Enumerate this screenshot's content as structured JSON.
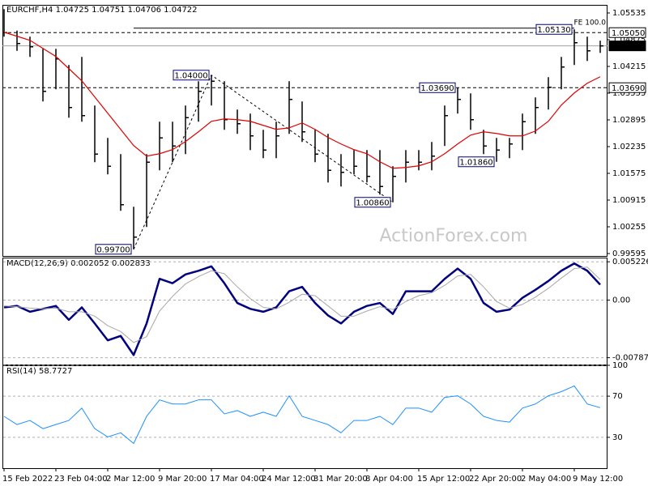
{
  "chart_data": [
    {
      "type": "hlc",
      "title": "EURCHF,H4 1.04725 1.04751 1.04706 1.04722",
      "watermark": "ActionForex.com",
      "categories": [
        "15 Feb 2022",
        null,
        null,
        null,
        "23 Feb 04:00",
        null,
        null,
        null,
        "2 Mar 12:00",
        null,
        null,
        null,
        "9 Mar 20:00",
        null,
        null,
        null,
        "17 Mar 04:00",
        null,
        null,
        null,
        "24 Mar 12:00",
        null,
        null,
        null,
        "31 Mar 20:00",
        null,
        null,
        null,
        "8 Apr 04:00",
        null,
        null,
        null,
        "15 Apr 12:00",
        null,
        null,
        null,
        "22 Apr 20:00",
        null,
        null,
        null,
        "2 May 04:00",
        null,
        null,
        null,
        "9 May 12:00",
        null,
        null
      ],
      "high": [
        1.0563,
        1.051,
        1.0495,
        1.0465,
        1.0465,
        1.0425,
        1.0445,
        1.0325,
        1.0245,
        1.0205,
        1.0075,
        1.0205,
        1.0285,
        1.0285,
        1.0325,
        1.0385,
        1.04,
        1.0385,
        1.0315,
        1.0305,
        1.0265,
        1.0285,
        1.0385,
        1.0335,
        1.0265,
        1.0255,
        1.0205,
        1.0215,
        1.0215,
        1.0215,
        1.0175,
        1.0215,
        1.0215,
        1.0235,
        1.0325,
        1.0369,
        1.0355,
        1.0265,
        1.0245,
        1.0245,
        1.0305,
        1.0345,
        1.0395,
        1.0445,
        1.0513,
        1.0495,
        1.0485
      ],
      "low": [
        1.0495,
        1.046,
        1.0445,
        1.0335,
        1.0365,
        1.0295,
        1.0285,
        1.0185,
        1.0155,
        1.0065,
        0.997,
        1.0025,
        1.0165,
        1.0185,
        1.0205,
        1.0285,
        1.0325,
        1.0265,
        1.0255,
        1.0215,
        1.0195,
        1.0195,
        1.0255,
        1.0235,
        1.0185,
        1.0135,
        1.0125,
        1.0155,
        1.0135,
        1.0105,
        1.0086,
        1.0135,
        1.0165,
        1.0165,
        1.0225,
        1.0305,
        1.0265,
        1.0205,
        1.0186,
        1.0195,
        1.0215,
        1.0255,
        1.0315,
        1.0365,
        1.0425,
        1.0435,
        1.0455
      ],
      "close": [
        1.0505,
        1.0478,
        1.047,
        1.036,
        1.044,
        1.032,
        1.03,
        1.0205,
        1.0175,
        1.008,
        1.0,
        1.0185,
        1.0245,
        1.0225,
        1.0295,
        1.036,
        1.0385,
        1.029,
        1.028,
        1.025,
        1.0215,
        1.025,
        1.034,
        1.026,
        1.0205,
        1.0165,
        1.016,
        1.0175,
        1.015,
        1.0125,
        1.015,
        1.0185,
        1.0185,
        1.02,
        1.03,
        1.034,
        1.029,
        1.0225,
        1.0215,
        1.023,
        1.0285,
        1.032,
        1.037,
        1.042,
        1.048,
        1.046,
        1.04722
      ],
      "bar_color": "#000000",
      "ma_values": [
        1.0506,
        1.0496,
        1.0486,
        1.0466,
        1.0446,
        1.0416,
        1.0386,
        1.0346,
        1.0306,
        1.0266,
        1.0226,
        1.02,
        1.0206,
        1.0216,
        1.0236,
        1.026,
        1.0286,
        1.0292,
        1.029,
        1.0286,
        1.0276,
        1.0266,
        1.027,
        1.0282,
        1.0266,
        1.0246,
        1.023,
        1.0216,
        1.0206,
        1.0186,
        1.017,
        1.0172,
        1.0176,
        1.0186,
        1.0206,
        1.023,
        1.0252,
        1.026,
        1.0256,
        1.025,
        1.025,
        1.0262,
        1.0286,
        1.0326,
        1.0356,
        1.038,
        1.0396
      ],
      "ma_color": "#e00000",
      "ylim": [
        0.99535,
        1.05735
      ],
      "yticks": [
        1.05535,
        1.04875,
        1.04215,
        1.03555,
        1.02895,
        1.02235,
        1.01575,
        1.00915,
        1.00255,
        0.99595
      ],
      "hlines": [
        {
          "value": 1.0505,
          "label": "1.05050",
          "style": "dashed"
        },
        {
          "value": 1.04722,
          "label": "1.04722",
          "style": "current"
        },
        {
          "value": 1.0369,
          "label": "1.03690",
          "style": "dashed"
        }
      ],
      "annotations": [
        {
          "value": 1.0513,
          "label": "1.05130",
          "x": 44
        },
        {
          "value": 1.04,
          "label": "1.04000",
          "x": 16
        },
        {
          "value": 0.997,
          "label": "0.99700",
          "x": 10
        },
        {
          "value": 1.0369,
          "label": "1.03690",
          "x": 35
        },
        {
          "value": 1.0086,
          "label": "1.00860",
          "x": 30
        },
        {
          "value": 1.0186,
          "label": "1.01860",
          "x": 38
        }
      ],
      "fe_level": {
        "value": 1.0516,
        "label": "FE 100.0",
        "x": [
          10,
          44
        ]
      },
      "trendline": {
        "x": [
          10,
          16,
          30
        ],
        "values": [
          0.997,
          1.04,
          1.0086
        ]
      }
    },
    {
      "type": "line",
      "title": "MACD(12,26,9) 0.002052 0.002833",
      "ylim": [
        -0.0088,
        0.0058
      ],
      "yticks": [
        0.005226,
        {
          "value": 0,
          "label": "0.00"
        },
        -0.007873
      ],
      "grid": true,
      "series": [
        {
          "color": "#00007f",
          "width": 2.5,
          "values": [
            -0.001,
            -0.0008,
            -0.0016,
            -0.0012,
            -0.0008,
            -0.0027,
            -0.001,
            -0.0032,
            -0.0055,
            -0.0049,
            -0.0075,
            -0.0032,
            0.0029,
            0.0023,
            0.0035,
            0.004,
            0.0046,
            0.0023,
            -0.0004,
            -0.0012,
            -0.0016,
            -0.001,
            0.0012,
            0.0018,
            -0.0004,
            -0.0021,
            -0.0032,
            -0.0016,
            -0.0008,
            -0.0004,
            -0.0019,
            0.0012,
            0.0012,
            0.0012,
            0.0029,
            0.0043,
            0.0029,
            -0.0004,
            -0.0016,
            -0.0013,
            0.0003,
            0.0014,
            0.0026,
            0.004,
            0.005,
            0.004,
            0.0021
          ]
        },
        {
          "color": "#a8a8a8",
          "width": 1,
          "values": [
            -0.0008,
            -0.0009,
            -0.0011,
            -0.0012,
            -0.0011,
            -0.0016,
            -0.0016,
            -0.0022,
            -0.0035,
            -0.0043,
            -0.0058,
            -0.005,
            -0.0015,
            0.0005,
            0.0022,
            0.0032,
            0.004,
            0.0036,
            0.0018,
            0.0002,
            -0.001,
            -0.0012,
            -0.0003,
            0.0008,
            0.0006,
            -0.0008,
            -0.0022,
            -0.0022,
            -0.0015,
            -0.0009,
            -0.0013,
            -0.0002,
            0.0006,
            0.001,
            0.002,
            0.0033,
            0.0035,
            0.0018,
            -0.0002,
            -0.0011,
            -0.0006,
            0.0004,
            0.0016,
            0.003,
            0.0043,
            0.0045,
            0.0028
          ]
        }
      ]
    },
    {
      "type": "line",
      "title": "RSI(14) 58.7727",
      "ylim": [
        0,
        100
      ],
      "yticks": [
        100,
        70,
        30
      ],
      "grid": true,
      "series": [
        {
          "color": "#1e90ff",
          "width": 1,
          "values": [
            50.4,
            42.4,
            46.4,
            38.4,
            42.4,
            46.4,
            58.4,
            38.4,
            30.4,
            34.4,
            24,
            50.4,
            66.4,
            62.4,
            62.4,
            66.4,
            66.4,
            52.8,
            56,
            50.4,
            54.4,
            50.4,
            70.4,
            50.4,
            46.4,
            42.4,
            34.4,
            46.4,
            46.4,
            50.4,
            42.4,
            58.4,
            58.4,
            54.4,
            68.8,
            70.4,
            62.4,
            50.4,
            46.4,
            44.8,
            58.4,
            62.4,
            70.4,
            74.4,
            80,
            62.4,
            58.8
          ]
        }
      ]
    }
  ]
}
